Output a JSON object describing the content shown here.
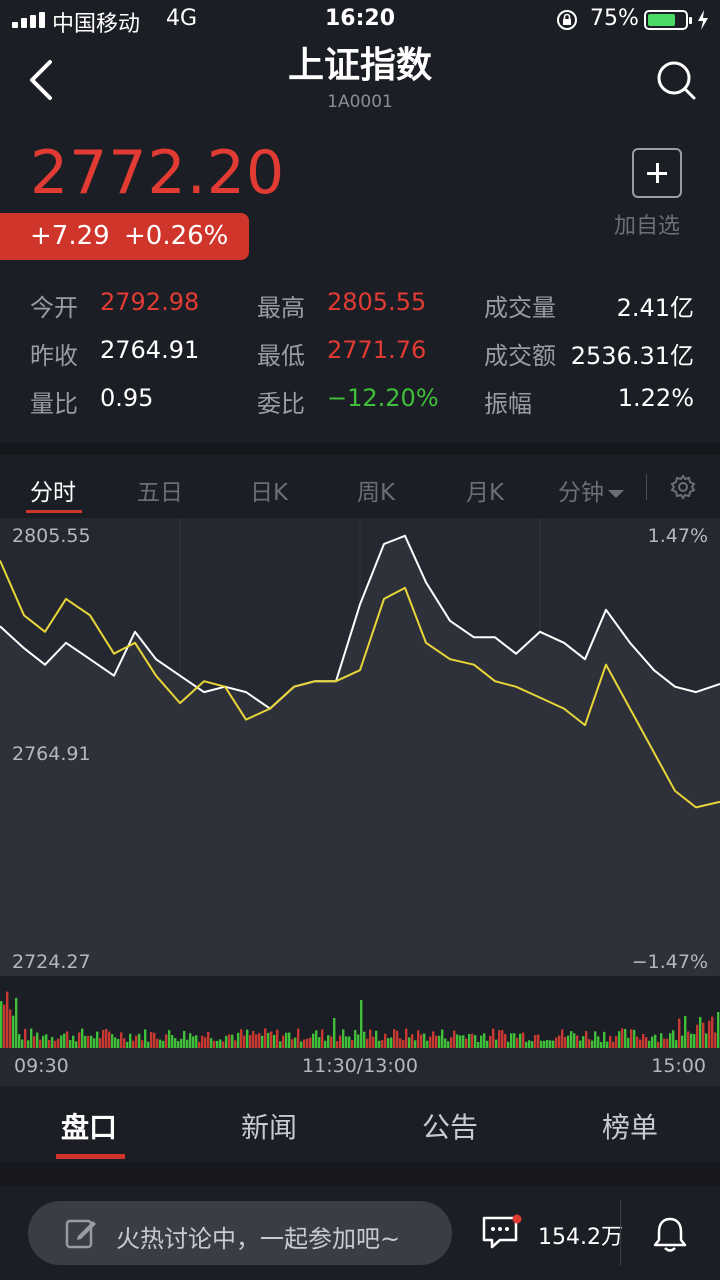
{
  "status_bar": {
    "carrier": "中国移动",
    "network": "4G",
    "time": "16:20",
    "battery_percent": "75%",
    "battery_level": 0.75
  },
  "header": {
    "title": "上证指数",
    "code": "1A0001"
  },
  "quote": {
    "price": "2772.20",
    "change": "+7.29",
    "change_pct": "+0.26%",
    "add_watch_label": "加自选"
  },
  "stats": {
    "open_label": "今开",
    "open": "2792.98",
    "high_label": "最高",
    "high": "2805.55",
    "volume_label": "成交量",
    "volume": "2.41亿",
    "prev_close_label": "昨收",
    "prev_close": "2764.91",
    "low_label": "最低",
    "low": "2771.76",
    "turnover_label": "成交额",
    "turnover": "2536.31亿",
    "vol_ratio_label": "量比",
    "vol_ratio": "0.95",
    "bid_ratio_label": "委比",
    "bid_ratio": "−12.20%",
    "amplitude_label": "振幅",
    "amplitude": "1.22%"
  },
  "chart_tabs": [
    "分时",
    "五日",
    "日K",
    "周K",
    "月K",
    "分钟"
  ],
  "chart_data": {
    "type": "line",
    "x_tick_labels": [
      "09:30",
      "11:30/13:00",
      "15:00"
    ],
    "ylim": [
      2724.27,
      2805.55
    ],
    "y_top_label": "2805.55",
    "y_mid_label": "2764.91",
    "y_bottom_label": "2724.27",
    "pct_top_label": "1.47%",
    "pct_bottom_label": "−1.47%",
    "reference": 2764.91,
    "x": [
      0,
      8,
      15,
      22,
      30,
      38,
      45,
      52,
      60,
      68,
      75,
      82,
      90,
      98,
      105,
      112,
      120,
      128,
      135,
      142,
      150,
      158,
      165,
      172,
      180,
      188,
      195,
      202,
      210,
      218,
      225,
      232,
      240
    ],
    "series": [
      {
        "color": "#ffffff",
        "values": [
          2788,
          2784,
          2781,
          2785,
          2782,
          2779,
          2787,
          2782,
          2779,
          2776,
          2777,
          2776,
          2773,
          2777,
          2778,
          2778,
          2792,
          2803,
          2804.5,
          2796,
          2789,
          2786,
          2786,
          2783,
          2787,
          2785,
          2782,
          2791,
          2785,
          2780,
          2777,
          2776,
          2777.5
        ]
      },
      {
        "color": "#e8d53a",
        "values": [
          2800,
          2790,
          2787,
          2793,
          2790,
          2783,
          2785,
          2779,
          2774,
          2778,
          2777,
          2771,
          2773,
          2777,
          2778,
          2778,
          2780,
          2793,
          2795,
          2785,
          2782,
          2781,
          2778,
          2777,
          2775,
          2773,
          2770,
          2781,
          2773,
          2765,
          2758,
          2755,
          2756
        ]
      }
    ],
    "volume_bars": 240
  },
  "bottom_tabs": [
    "盘口",
    "新闻",
    "公告",
    "榜单"
  ],
  "bottom_bar": {
    "discuss_placeholder": "火热讨论中，一起参加吧~",
    "comment_count": "154.2万"
  },
  "colors": {
    "up": "#e23b33",
    "down": "#3fbf3a",
    "background": "#1c1e25",
    "chart_bg": "#252830",
    "accent": "#d0352b"
  }
}
